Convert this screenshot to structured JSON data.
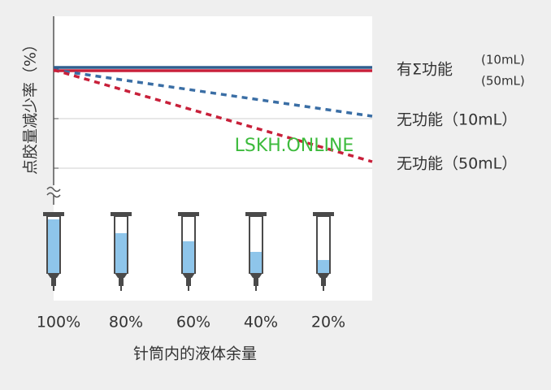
{
  "y_axis": {
    "title": "点胶量减少率（%）"
  },
  "legend": [
    {
      "label": "有Σ功能",
      "notes": [
        "(10mL)",
        "(50mL)"
      ]
    },
    {
      "label": "无功能（10mL）"
    },
    {
      "label": "无功能（50mL）"
    }
  ],
  "x_axis": {
    "categories": [
      "100%",
      "80%",
      "60%",
      "40%",
      "20%"
    ],
    "title": "针筒内的液体余量"
  },
  "watermark": "LSKH.ONLINE"
}
